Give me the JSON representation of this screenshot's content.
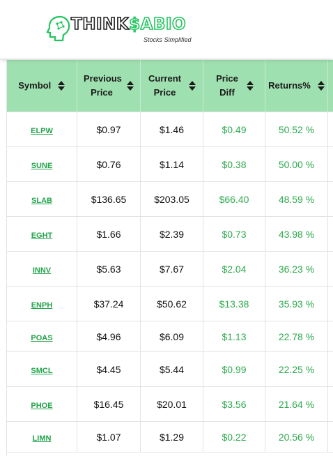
{
  "brand": {
    "name_think": "THINK",
    "name_sabio": "$ABIO",
    "tagline": "Stocks Simplified"
  },
  "table": {
    "columns": [
      "Symbol",
      "Previous Price",
      "Current Price",
      "Price Diff",
      "Returns%",
      ""
    ],
    "rows": [
      {
        "symbol": "ELPW",
        "previous": "$0.97",
        "current": "$1.46",
        "diff": "$0.49",
        "returns": "50.52 %"
      },
      {
        "symbol": "SUNE",
        "previous": "$0.76",
        "current": "$1.14",
        "diff": "$0.38",
        "returns": "50.00 %"
      },
      {
        "symbol": "SLAB",
        "previous": "$136.65",
        "current": "$203.05",
        "diff": "$66.40",
        "returns": "48.59 %"
      },
      {
        "symbol": "EGHT",
        "previous": "$1.66",
        "current": "$2.39",
        "diff": "$0.73",
        "returns": "43.98 %"
      },
      {
        "symbol": "INNV",
        "previous": "$5.63",
        "current": "$7.67",
        "diff": "$2.04",
        "returns": "36.23 %"
      },
      {
        "symbol": "ENPH",
        "previous": "$37.24",
        "current": "$50.62",
        "diff": "$13.38",
        "returns": "35.93 %"
      },
      {
        "symbol": "POAS",
        "previous": "$4.96",
        "current": "$6.09",
        "diff": "$1.13",
        "returns": "22.78 %"
      },
      {
        "symbol": "SMCL",
        "previous": "$4.45",
        "current": "$5.44",
        "diff": "$0.99",
        "returns": "22.25 %"
      },
      {
        "symbol": "PHOE",
        "previous": "$16.45",
        "current": "$20.01",
        "diff": "$3.56",
        "returns": "21.64 %"
      },
      {
        "symbol": "LIMN",
        "previous": "$1.07",
        "current": "$1.29",
        "diff": "$0.22",
        "returns": "20.56 %"
      }
    ]
  },
  "colors": {
    "header_bg": "#9fe0b0",
    "link_green": "#22a34b",
    "value_green": "#2eaa4e"
  }
}
